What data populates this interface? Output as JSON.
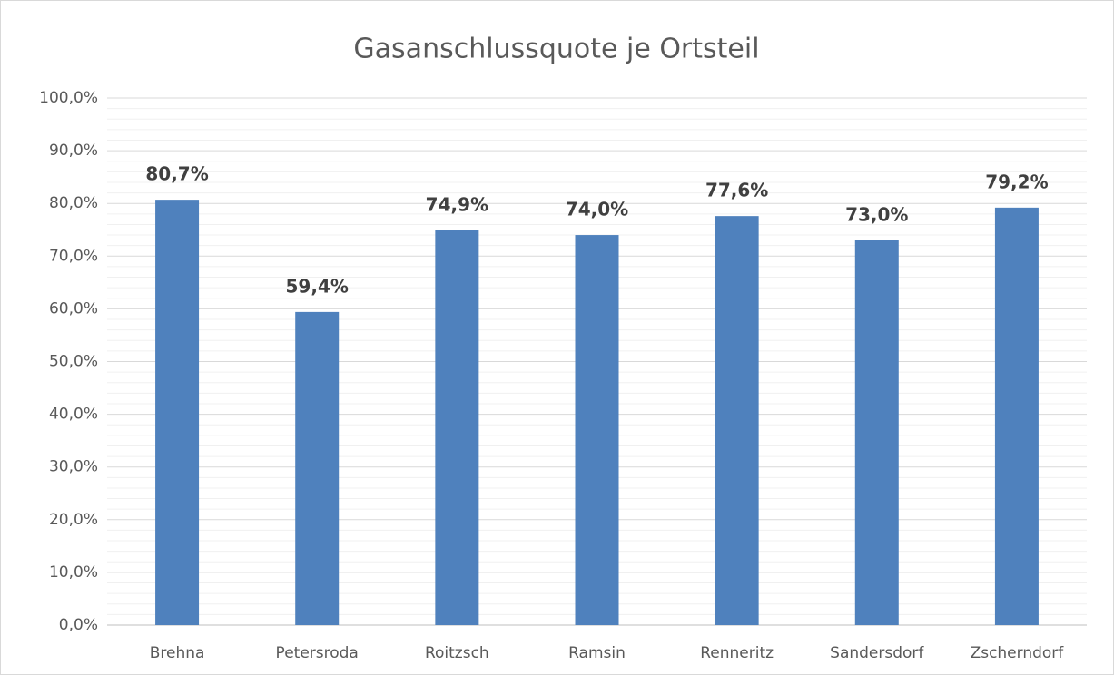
{
  "chart_data": {
    "type": "bar",
    "title": "Gasanschlussquote je Ortsteil",
    "categories": [
      "Brehna",
      "Petersroda",
      "Roitzsch",
      "Ramsin",
      "Renneritz",
      "Sandersdorf",
      "Zscherndorf"
    ],
    "values": [
      80.7,
      59.4,
      74.9,
      74.0,
      77.6,
      73.0,
      79.2
    ],
    "value_labels": [
      "80,7%",
      "59,4%",
      "74,9%",
      "74,0%",
      "77,6%",
      "73,0%",
      "79,2%"
    ],
    "color": "#4f81bd",
    "ylim": [
      0,
      100
    ],
    "yticks": [
      {
        "value": 0,
        "label": "0,0%"
      },
      {
        "value": 10,
        "label": "10,0%"
      },
      {
        "value": 20,
        "label": "20,0%"
      },
      {
        "value": 30,
        "label": "30,0%"
      },
      {
        "value": 40,
        "label": "40,0%"
      },
      {
        "value": 50,
        "label": "50,0%"
      },
      {
        "value": 60,
        "label": "60,0%"
      },
      {
        "value": 70,
        "label": "70,0%"
      },
      {
        "value": 80,
        "label": "80,0%"
      },
      {
        "value": 90,
        "label": "90,0%"
      },
      {
        "value": 100,
        "label": "100,0%"
      }
    ],
    "grid": true,
    "minor_grid_divisions": 5
  }
}
